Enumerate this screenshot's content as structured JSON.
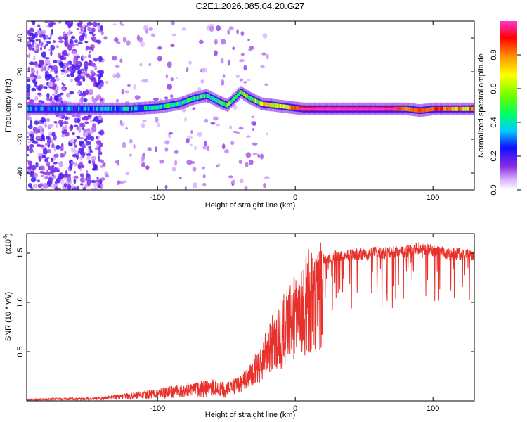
{
  "title": "C2E1.2026.085.04.20.G27",
  "colors": {
    "series": "#e8312b",
    "frame": "#000000",
    "background": "#ffffff"
  },
  "chart_data": [
    {
      "type": "heatmap",
      "xlabel": "Height of straight line (km)",
      "ylabel": "Frequency (Hz)",
      "xlim": [
        -195,
        130
      ],
      "ylim": [
        -50,
        50
      ],
      "xticks": [
        -100,
        0,
        100
      ],
      "xtick_labels": [
        "-100",
        "0",
        "100"
      ],
      "yticks": [
        -40,
        -20,
        0,
        20,
        40
      ],
      "ytick_labels": [
        "-40",
        "-20",
        "0",
        "20",
        "40"
      ],
      "ridge": {
        "x": [
          -195,
          -160,
          -140,
          -120,
          -100,
          -85,
          -75,
          -65,
          -58,
          -50,
          -45,
          -40,
          -35,
          -30,
          -25,
          -15,
          -5,
          5,
          20,
          60,
          80,
          90,
          100,
          130
        ],
        "frequency": [
          -2,
          -2,
          -2,
          -2,
          -1,
          1,
          4,
          6,
          3,
          0,
          4,
          8,
          5,
          3,
          1,
          0,
          -1,
          -2,
          -2,
          -2,
          -2,
          -3,
          -2,
          -2
        ],
        "amplitude": [
          0.3,
          0.3,
          0.3,
          0.35,
          0.4,
          0.45,
          0.45,
          0.45,
          0.5,
          0.55,
          0.5,
          0.45,
          0.55,
          0.6,
          0.65,
          0.65,
          0.7,
          0.9,
          0.95,
          0.95,
          0.8,
          0.85,
          0.8,
          0.75
        ]
      },
      "colorbar": {
        "label": "Normalized spectral amplitude",
        "range": [
          0,
          1
        ],
        "ticks": [
          0.0,
          0.2,
          0.4,
          0.6,
          0.8
        ],
        "tick_labels": [
          "0.0",
          "0.2",
          "0.4",
          "0.6",
          "0.8"
        ]
      }
    },
    {
      "type": "line",
      "xlabel": "Height of straight line (km)",
      "ylabel": "SNR (10 * v/v)",
      "y_scale_label": "(x10",
      "y_scale_exponent": "4",
      "y_scale_suffix": ")",
      "xlim": [
        -195,
        130
      ],
      "ylim": [
        0,
        17000
      ],
      "xticks": [
        -100,
        0,
        100
      ],
      "xtick_labels": [
        "-100",
        "0",
        "100"
      ],
      "yticks": [
        5000,
        10000,
        15000
      ],
      "ytick_labels": [
        "0.5",
        "1.0",
        "1.5"
      ],
      "series": [
        {
          "name": "SNR",
          "envelope_x": [
            -195,
            -160,
            -140,
            -120,
            -100,
            -80,
            -60,
            -50,
            -40,
            -35,
            -30,
            -25,
            -20,
            -15,
            -10,
            -5,
            0,
            5,
            10,
            15,
            20,
            25,
            30,
            40,
            50,
            60,
            80,
            90,
            100,
            110,
            120,
            130
          ],
          "envelope_y": [
            200,
            300,
            400,
            800,
            1200,
            1600,
            2000,
            1700,
            2200,
            3000,
            4000,
            5200,
            6800,
            8000,
            9200,
            10200,
            11500,
            12600,
            13600,
            14300,
            14800,
            15000,
            15200,
            15300,
            15400,
            15500,
            15600,
            16000,
            15700,
            15500,
            15400,
            15300
          ]
        }
      ]
    }
  ]
}
